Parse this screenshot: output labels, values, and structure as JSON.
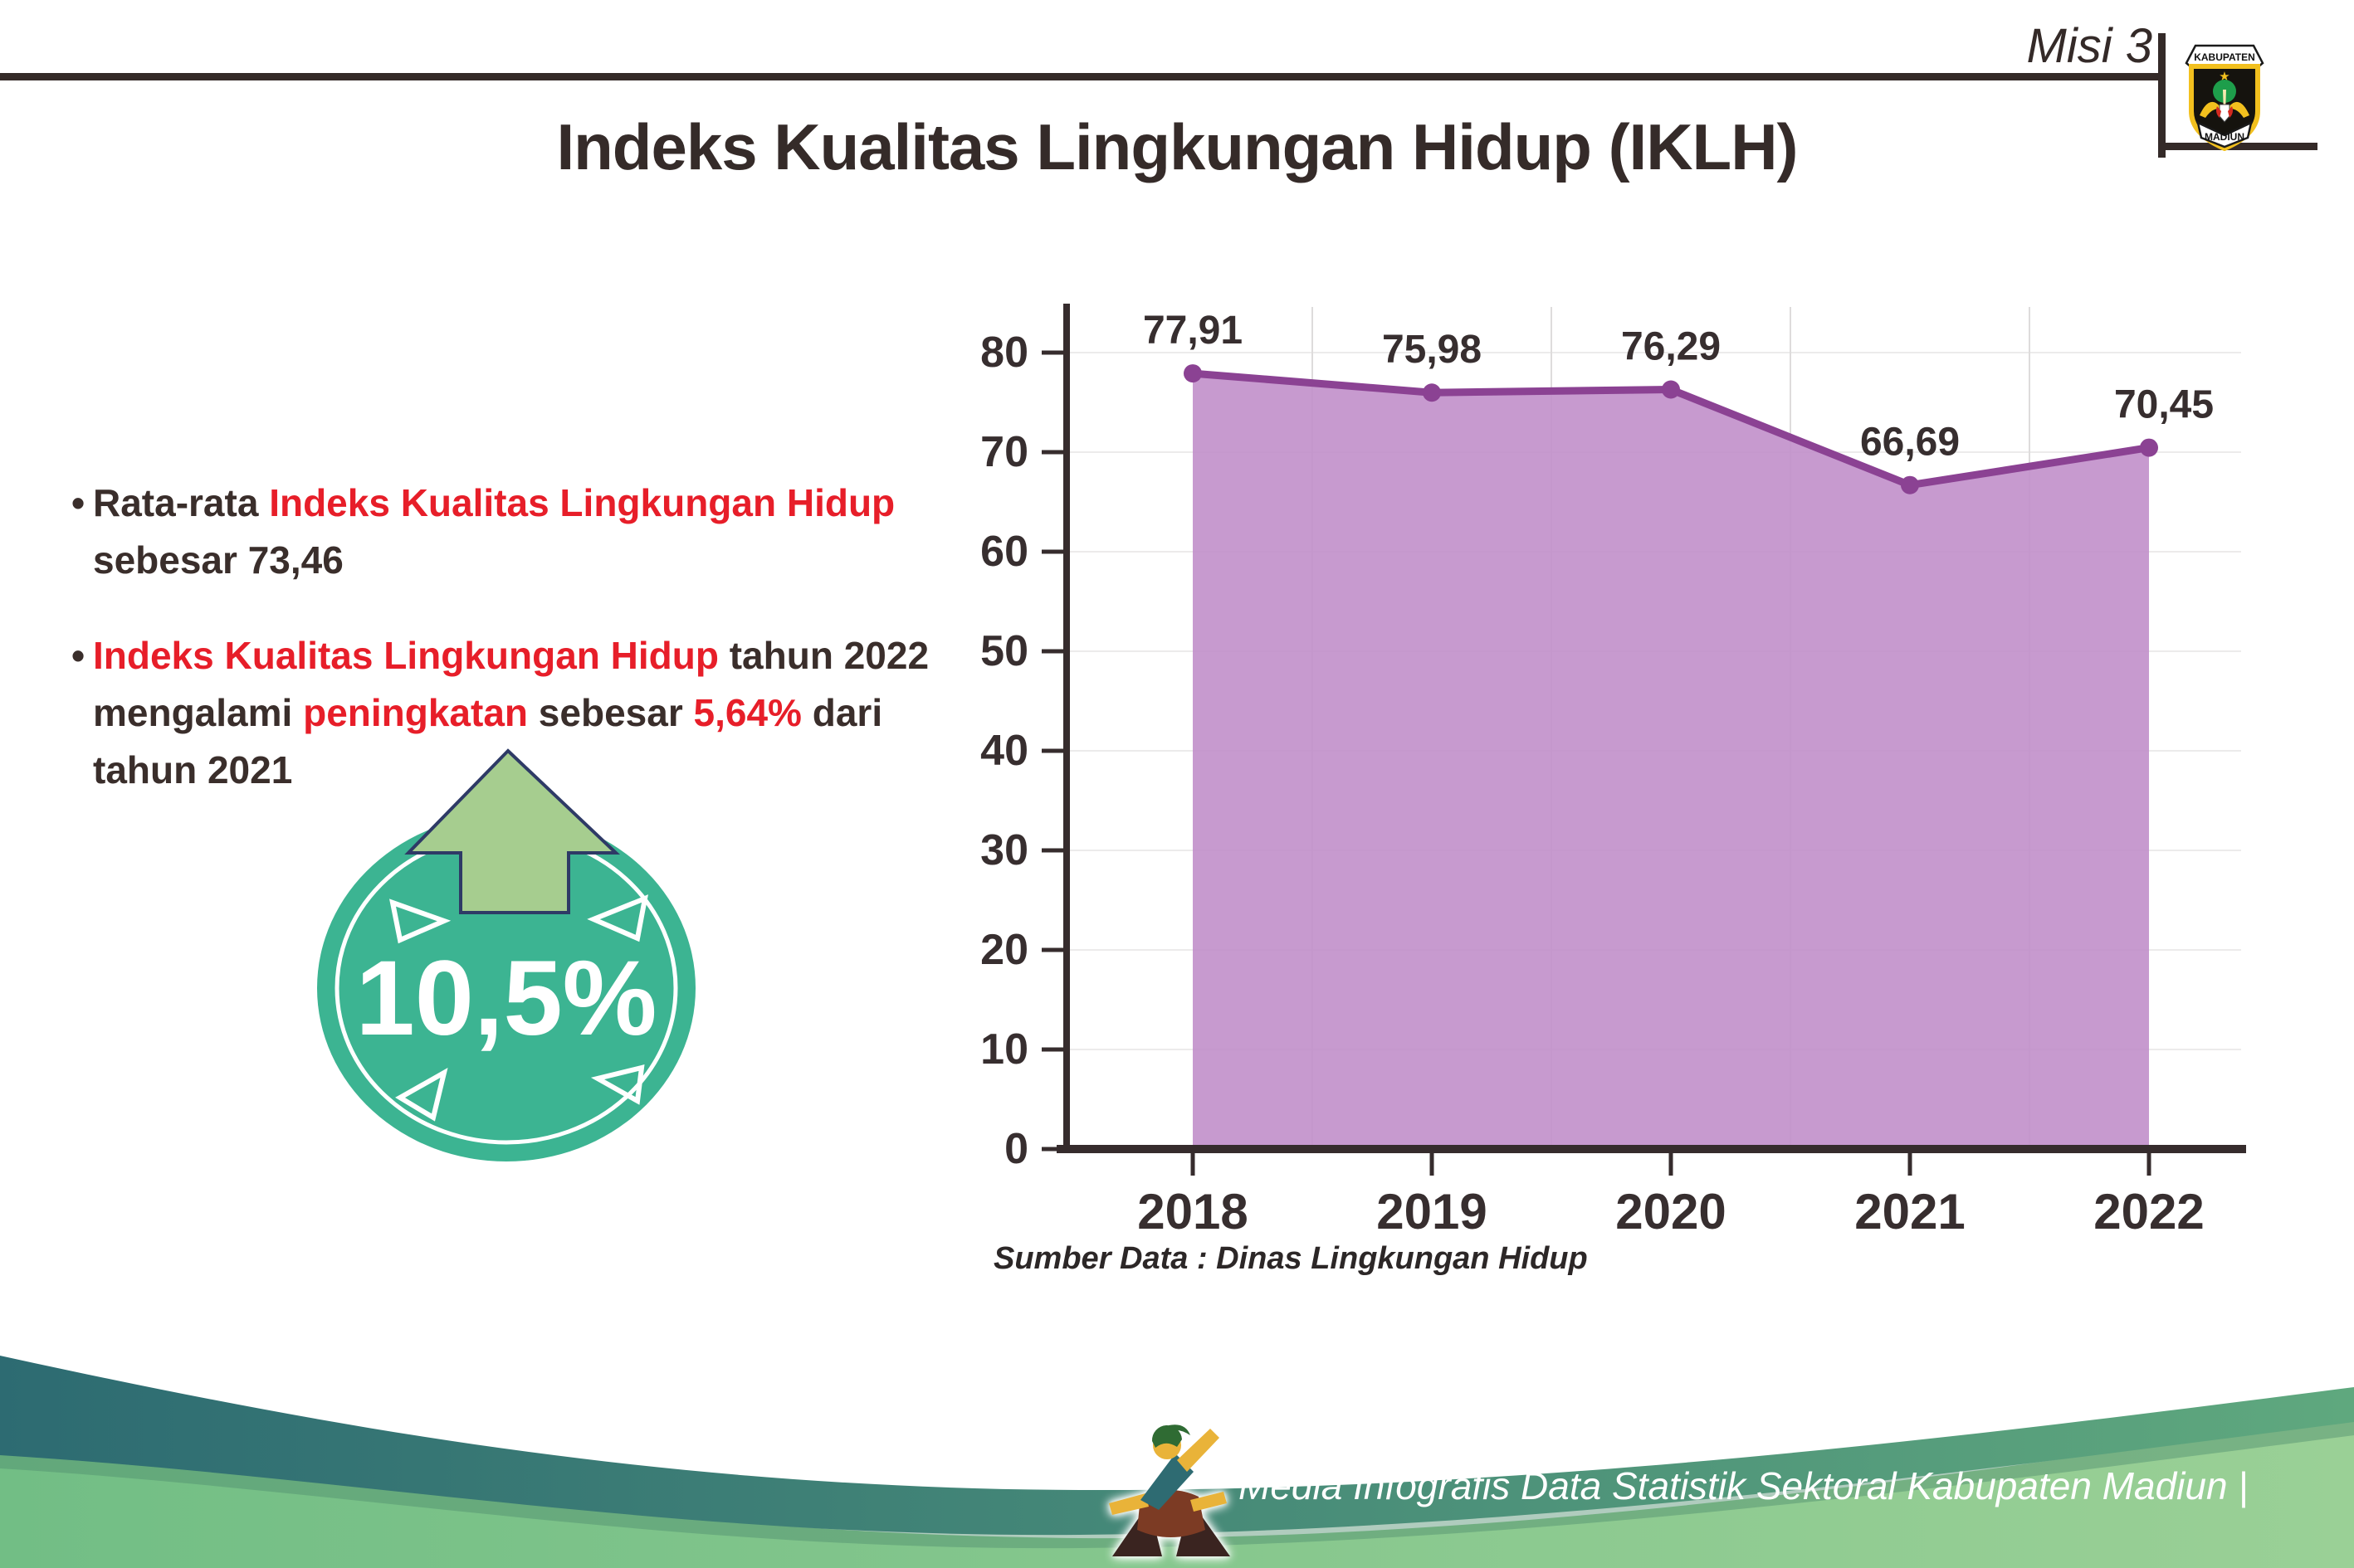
{
  "header": {
    "misi": "Misi 3",
    "title": "Indeks Kualitas Lingkungan Hidup (IKLH)"
  },
  "logo": {
    "top_banner": "KABUPATEN",
    "bottom_banner": "MADIUN"
  },
  "bullets": {
    "b1": [
      {
        "t": "Rata-rata ",
        "c": "dark"
      },
      {
        "t": "Indeks Kualitas Lingkungan Hidup",
        "c": "red"
      },
      {
        "br": true
      },
      {
        "t": "sebesar 73,46",
        "c": "dark"
      }
    ],
    "b2": [
      {
        "t": "Indeks Kualitas Lingkungan Hidup",
        "c": "red"
      },
      {
        "t": " tahun 2022",
        "c": "dark"
      },
      {
        "br": true
      },
      {
        "t": "mengalami ",
        "c": "dark"
      },
      {
        "t": "peningkatan",
        "c": "red"
      },
      {
        "t": " sebesar ",
        "c": "dark"
      },
      {
        "t": "5,64%",
        "c": "red"
      },
      {
        "t": " dari",
        "c": "dark"
      },
      {
        "br": true
      },
      {
        "t": "tahun 2021",
        "c": "dark"
      }
    ]
  },
  "badge": {
    "value": "10,5%",
    "circle_color": "#3cb492",
    "arrow_color": "#a6cd8f"
  },
  "chart_data": {
    "type": "area",
    "title": "",
    "xlabel": "",
    "ylabel": "",
    "categories": [
      "2018",
      "2019",
      "2020",
      "2021",
      "2022"
    ],
    "values": [
      77.91,
      75.98,
      76.29,
      66.69,
      70.45
    ],
    "value_labels": [
      "77,91",
      "75,98",
      "76,29",
      "66,69",
      "70,45"
    ],
    "ylim": [
      0,
      80
    ],
    "ytick_step": 10,
    "grid": true,
    "legend": false,
    "line_color": "#8b4293",
    "fill_color": "#c18fca",
    "source_note": "Sumber Data : Dinas Lingkungan Hidup"
  },
  "footer": {
    "credit": "Media Infografis Data Statistik Sektoral Kabupaten Madiun |"
  }
}
